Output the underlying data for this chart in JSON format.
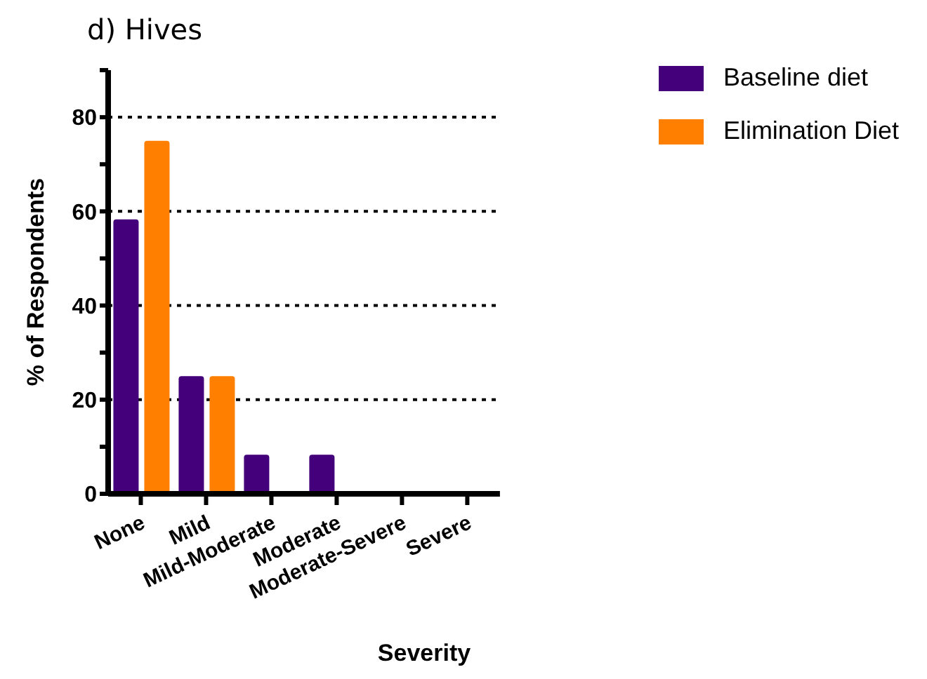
{
  "chart_data": {
    "type": "bar",
    "title": "d) Hives",
    "xlabel": "Severity",
    "ylabel": "% of Respondents",
    "categories": [
      "None",
      "Mild",
      "Mild-Moderate",
      "Moderate",
      "Moderate-Severe",
      "Severe"
    ],
    "series": [
      {
        "name": "Baseline diet",
        "color": "#44007a",
        "values": [
          58.3,
          25,
          8.3,
          8.3,
          0,
          0
        ]
      },
      {
        "name": "Elimination Diet",
        "color": "#ff8000",
        "values": [
          75,
          25,
          0,
          0,
          0,
          0
        ]
      }
    ],
    "ylim": [
      0,
      90
    ],
    "yticks": [
      0,
      {
        "value": 10,
        "label": null
      },
      20,
      {
        "value": 30,
        "label": null
      },
      40,
      {
        "value": 50,
        "label": null
      },
      60,
      {
        "value": 70,
        "label": null
      },
      80,
      {
        "value": 90,
        "label": null
      }
    ],
    "grid": "y",
    "legend": "top right"
  }
}
